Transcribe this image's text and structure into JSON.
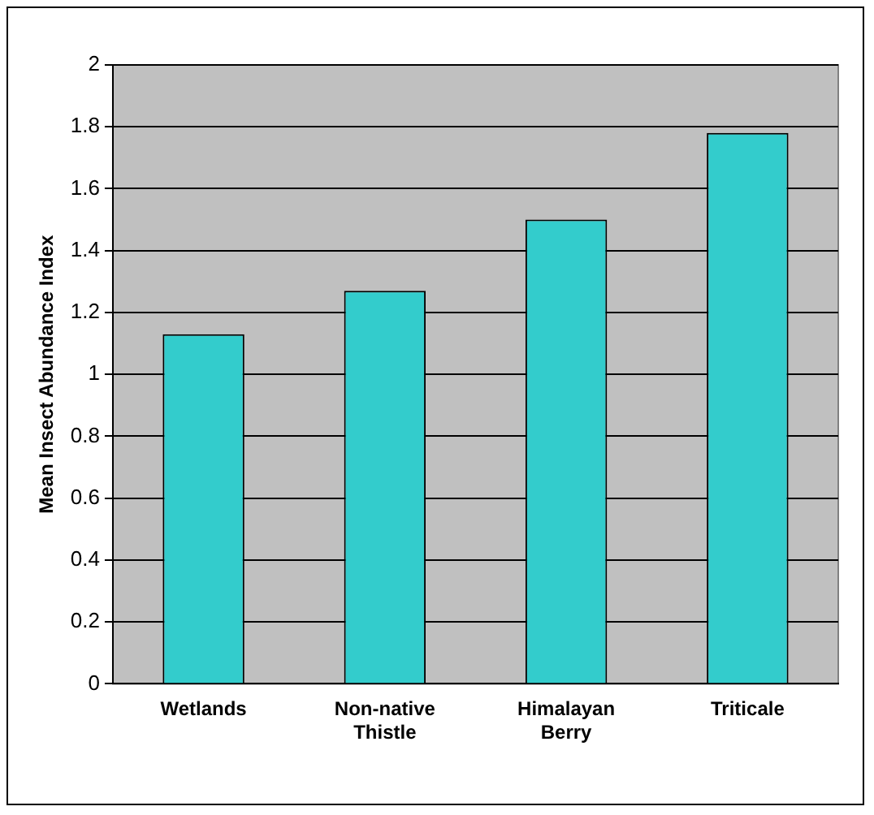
{
  "chart_data": {
    "type": "bar",
    "ylabel": "Mean Insect Abundance Index",
    "categories": [
      "Wetlands",
      "Non-native Thistle",
      "Himalayan Berry",
      "Triticale"
    ],
    "values": [
      1.13,
      1.27,
      1.5,
      1.78
    ],
    "color": "#33cccc",
    "ylim": [
      0,
      2
    ],
    "yticks": [
      0,
      0.2,
      0.4,
      0.6,
      0.8,
      1,
      1.2,
      1.4,
      1.6,
      1.8,
      2
    ],
    "grid": "y",
    "legend": false
  }
}
